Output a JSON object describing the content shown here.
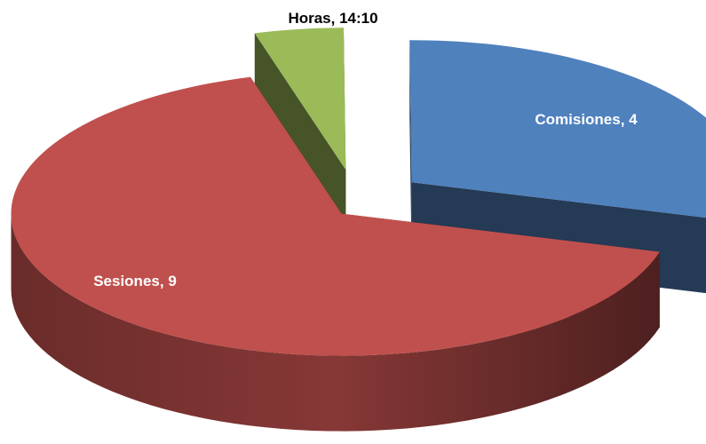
{
  "chart_data": {
    "type": "pie3d",
    "categories": [
      "Horas",
      "Comisiones",
      "Sesiones"
    ],
    "values": [
      0.5903,
      4,
      9
    ],
    "value_labels": [
      "14:10",
      "4",
      "9"
    ],
    "colors": [
      "#9bbb59",
      "#4f81bd",
      "#c0504d"
    ]
  }
}
